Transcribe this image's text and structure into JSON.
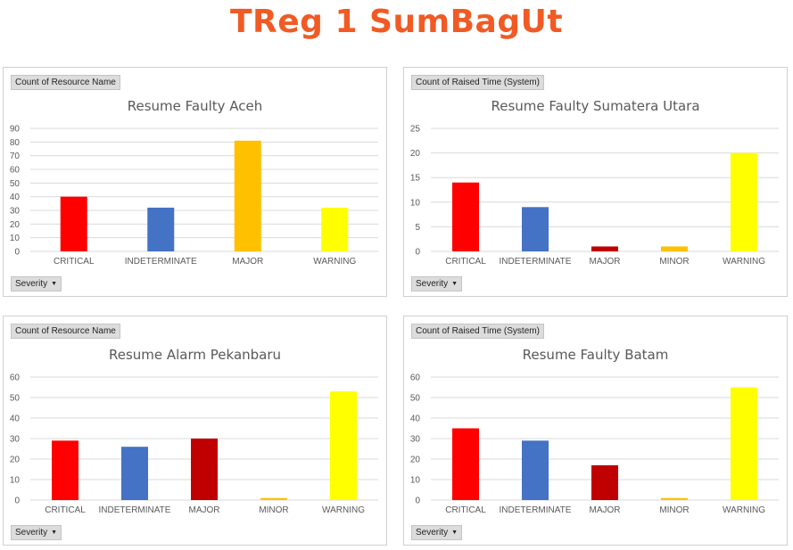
{
  "header": {
    "title": "TReg 1 SumBagUt"
  },
  "panels": [
    {
      "field_button": "Count of Resource Name",
      "filter_button": "Severity",
      "chart_title": "Resume Faulty Aceh"
    },
    {
      "field_button": "Count of Raised Time  (System)",
      "filter_button": "Severity",
      "chart_title": "Resume Faulty Sumatera Utara"
    },
    {
      "field_button": "Count of Resource Name",
      "filter_button": "Severity",
      "chart_title": "Resume Alarm Pekanbaru"
    },
    {
      "field_button": "Count of Raised Time  (System)",
      "filter_button": "Severity",
      "chart_title": "Resume Faulty Batam"
    }
  ],
  "chart_data": [
    {
      "type": "bar",
      "title": "Resume Faulty Aceh",
      "categories": [
        "CRITICAL",
        "INDETERMINATE",
        "MAJOR",
        "WARNING"
      ],
      "values": [
        40,
        32,
        81,
        32
      ],
      "colors": [
        "#ff0000",
        "#4472c4",
        "#ffc000",
        "#ffff00"
      ],
      "ylim": [
        0,
        90
      ],
      "yticks": [
        0,
        10,
        20,
        30,
        40,
        50,
        60,
        70,
        80,
        90
      ],
      "grid": true
    },
    {
      "type": "bar",
      "title": "Resume Faulty Sumatera Utara",
      "categories": [
        "CRITICAL",
        "INDETERMINATE",
        "MAJOR",
        "MINOR",
        "WARNING"
      ],
      "values": [
        14,
        9,
        1,
        1,
        20
      ],
      "colors": [
        "#ff0000",
        "#4472c4",
        "#c00000",
        "#ffc000",
        "#ffff00"
      ],
      "ylim": [
        0,
        25
      ],
      "yticks": [
        0,
        5,
        10,
        15,
        20,
        25
      ],
      "grid": true
    },
    {
      "type": "bar",
      "title": "Resume Alarm Pekanbaru",
      "categories": [
        "CRITICAL",
        "INDETERMINATE",
        "MAJOR",
        "MINOR",
        "WARNING"
      ],
      "values": [
        29,
        26,
        30,
        1,
        53
      ],
      "colors": [
        "#ff0000",
        "#4472c4",
        "#c00000",
        "#ffc000",
        "#ffff00"
      ],
      "ylim": [
        0,
        60
      ],
      "yticks": [
        0,
        10,
        20,
        30,
        40,
        50,
        60
      ],
      "grid": true
    },
    {
      "type": "bar",
      "title": "Resume Faulty Batam",
      "categories": [
        "CRITICAL",
        "INDETERMINATE",
        "MAJOR",
        "MINOR",
        "WARNING"
      ],
      "values": [
        35,
        29,
        17,
        1,
        55
      ],
      "colors": [
        "#ff0000",
        "#4472c4",
        "#c00000",
        "#ffc000",
        "#ffff00"
      ],
      "ylim": [
        0,
        60
      ],
      "yticks": [
        0,
        10,
        20,
        30,
        40,
        50,
        60
      ],
      "grid": true
    }
  ]
}
